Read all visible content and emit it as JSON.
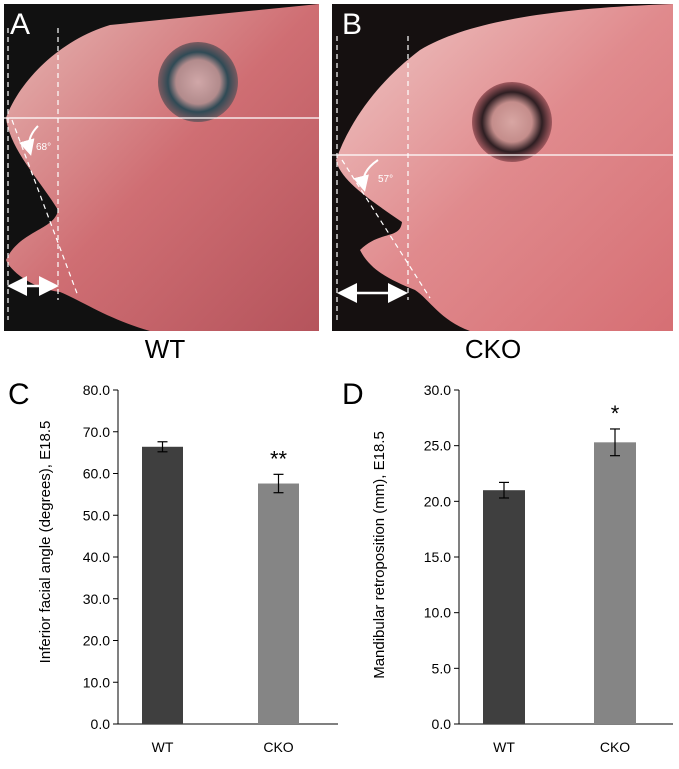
{
  "photos": [
    {
      "letter": "A",
      "caption": "WT",
      "angle_text": "68°",
      "angle": 68
    },
    {
      "letter": "B",
      "caption": "CKO",
      "angle_text": "57°",
      "angle": 57
    }
  ],
  "colors": {
    "wt_bar": "#3f3f3f",
    "cko_bar": "#858585"
  },
  "chart_data": [
    {
      "type": "bar",
      "panel": "C",
      "categories": [
        "WT",
        "CKO"
      ],
      "values": [
        66.4,
        57.6
      ],
      "errors": [
        1.2,
        2.2
      ],
      "significance": [
        "",
        "**"
      ],
      "ylabel": "Inferior facial angle (degrees), E18.5",
      "ylim": [
        0,
        80
      ],
      "yticks": [
        "0.0",
        "10.0",
        "20.0",
        "30.0",
        "40.0",
        "50.0",
        "60.0",
        "70.0",
        "80.0"
      ],
      "grid": false
    },
    {
      "type": "bar",
      "panel": "D",
      "categories": [
        "WT",
        "CKO"
      ],
      "values": [
        21.0,
        25.3
      ],
      "errors": [
        0.7,
        1.2
      ],
      "significance": [
        "",
        "*"
      ],
      "ylabel": "Mandibular retroposition (mm), E18.5",
      "ylim": [
        0,
        30
      ],
      "yticks": [
        "0.0",
        "5.0",
        "10.0",
        "15.0",
        "20.0",
        "25.0",
        "30.0"
      ],
      "grid": false
    }
  ]
}
